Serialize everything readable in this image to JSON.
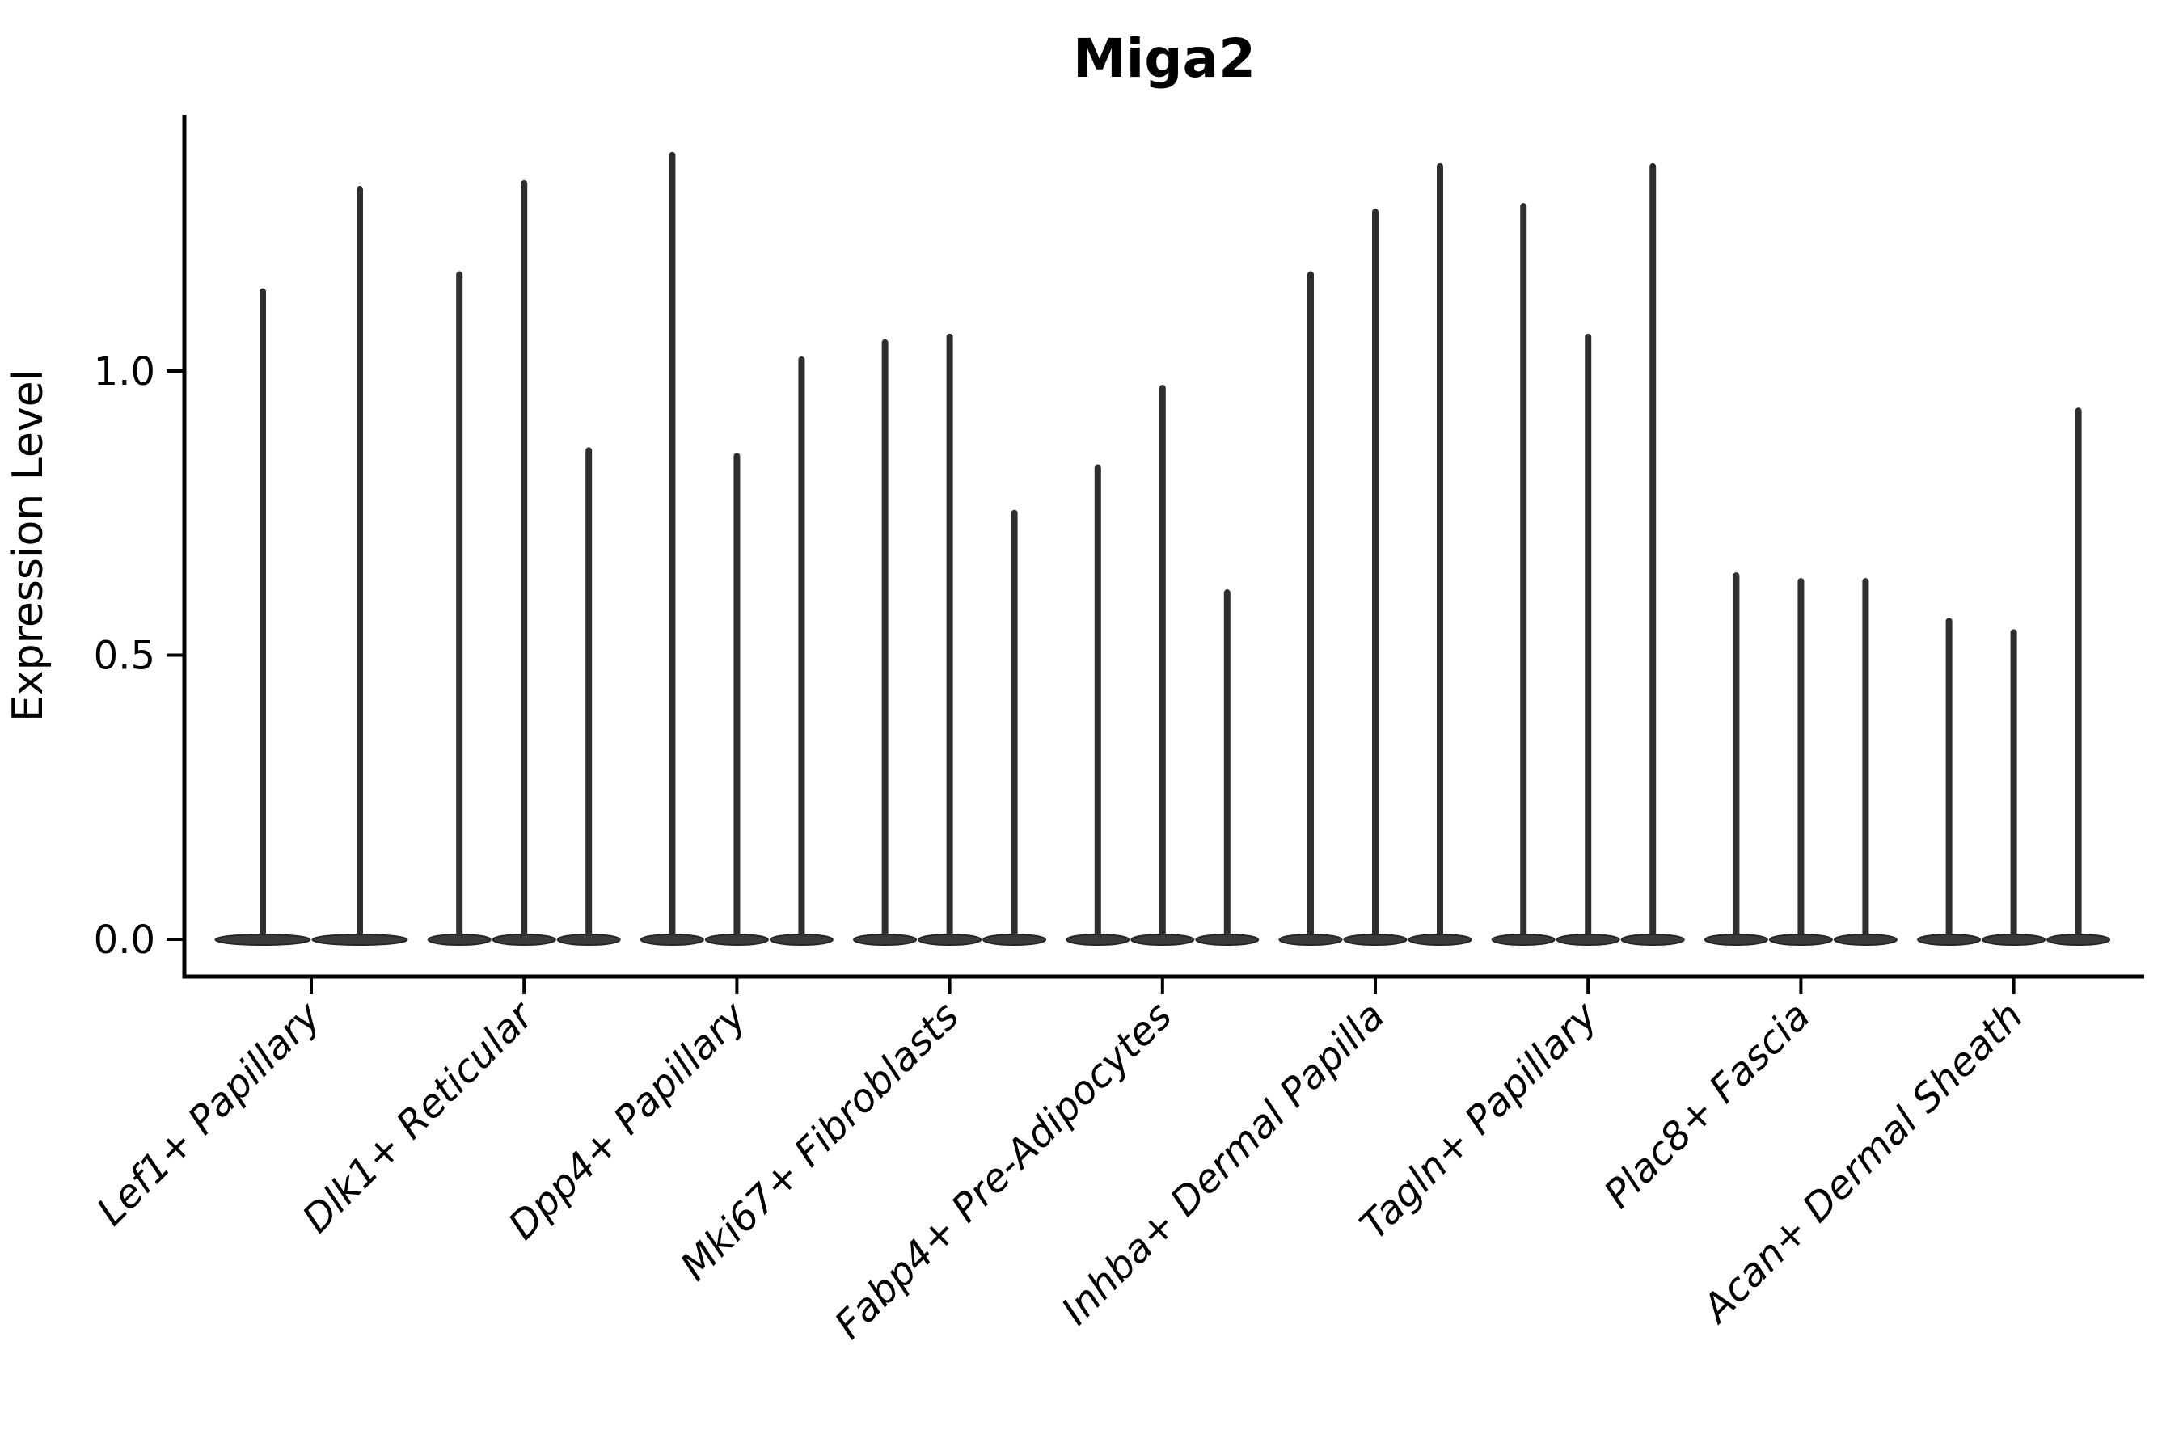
{
  "figure": {
    "background": "#ffffff",
    "text_color": "#000000",
    "violin_fill": "#3a3a3a",
    "violin_edge": "#252525",
    "needle_color": "#2e2e2e"
  },
  "chart_data": {
    "type": "violin",
    "title": "Miga2",
    "xlabel": "",
    "ylabel": "Expression Level",
    "ylim": [
      0,
      1.45
    ],
    "grid": false,
    "legend": "none",
    "spines": [
      "left",
      "bottom"
    ],
    "violin_style": "needle-shaped violins: wide flat density lens at 0 with a thin spike up to the max expression value",
    "yticks": [
      {
        "label": "0.0",
        "value": 0.0
      },
      {
        "label": "0.5",
        "value": 0.5
      },
      {
        "label": "1.0",
        "value": 1.0
      }
    ],
    "categories": [
      {
        "label": "Lef1+ Papillary",
        "violins": [
          1.14,
          1.32
        ]
      },
      {
        "label": "Dlk1+ Reticular",
        "violins": [
          1.17,
          1.33,
          0.86
        ]
      },
      {
        "label": "Dpp4+ Papillary",
        "violins": [
          1.38,
          0.85,
          1.02
        ]
      },
      {
        "label": "Mki67+ Fibroblasts",
        "violins": [
          1.05,
          1.06,
          0.75
        ]
      },
      {
        "label": "Fabp4+ Pre-Adipocytes",
        "violins": [
          0.83,
          0.97,
          0.61
        ]
      },
      {
        "label": "Inhba+ Dermal Papilla",
        "violins": [
          1.17,
          1.28,
          1.36
        ]
      },
      {
        "label": "Tagln+ Papillary",
        "violins": [
          1.29,
          1.06,
          1.36
        ]
      },
      {
        "label": "Plac8+ Fascia",
        "violins": [
          0.64,
          0.63,
          0.63
        ]
      },
      {
        "label": "Acan+ Dermal Sheath",
        "violins": [
          0.56,
          0.54,
          0.93
        ]
      }
    ]
  }
}
